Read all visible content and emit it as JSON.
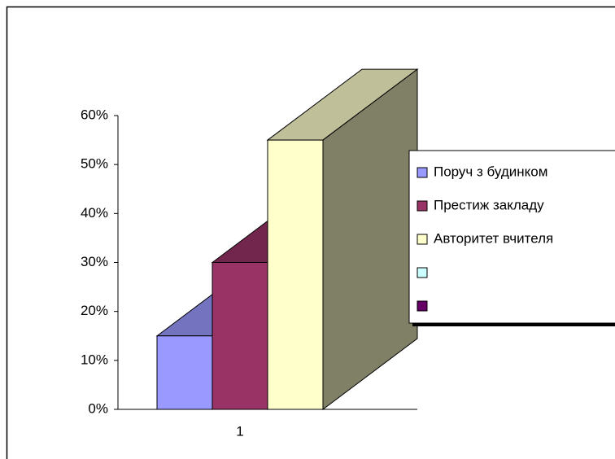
{
  "chart_data": {
    "type": "bar3d",
    "categories": [
      "1"
    ],
    "series": [
      {
        "name": "Поруч з будинком",
        "color": "#9999ff",
        "values": [
          15
        ]
      },
      {
        "name": "Престиж закладу",
        "color": "#993366",
        "values": [
          30
        ]
      },
      {
        "name": "Авторитет вчителя",
        "color": "#ffffcc",
        "values": [
          55
        ]
      },
      {
        "name": null,
        "color": "#ccffff",
        "values": [
          null
        ]
      },
      {
        "name": null,
        "color": "#660066",
        "values": [
          null
        ]
      }
    ],
    "ylim": [
      0,
      60
    ],
    "yticks": [
      {
        "value": 0,
        "label": "0%"
      },
      {
        "value": 10,
        "label": "10%"
      },
      {
        "value": 20,
        "label": "20%"
      },
      {
        "value": 30,
        "label": "30%"
      },
      {
        "value": 40,
        "label": "40%"
      },
      {
        "value": 50,
        "label": "50%"
      },
      {
        "value": 60,
        "label": "60%"
      }
    ],
    "legend": "right"
  }
}
